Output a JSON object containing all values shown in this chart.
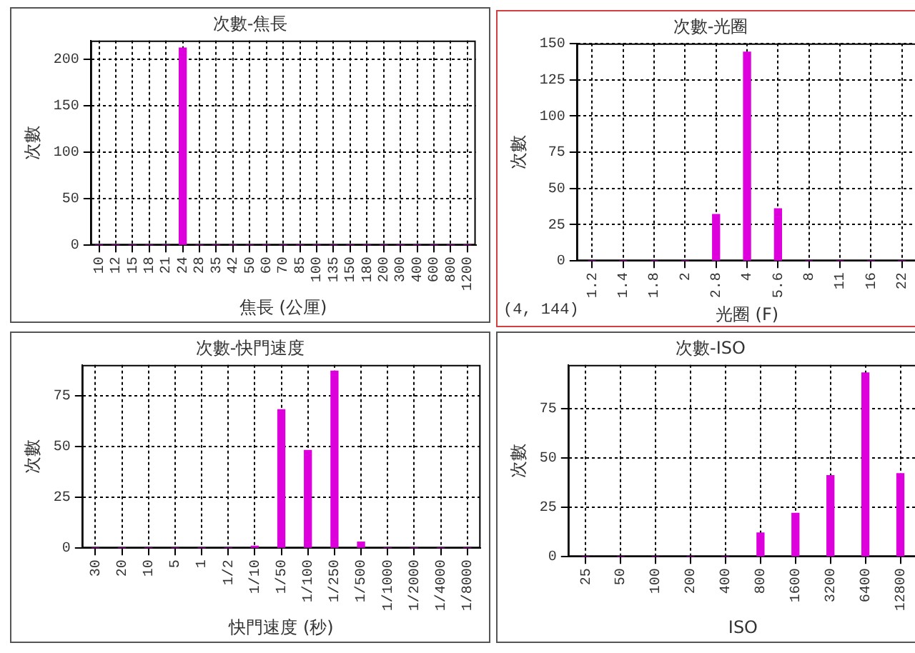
{
  "chart_data": [
    {
      "type": "bar",
      "title": "次數-焦長",
      "xlabel": "焦長 (公厘)",
      "ylabel": "次數",
      "categories": [
        "10",
        "12",
        "15",
        "18",
        "21",
        "24",
        "28",
        "35",
        "42",
        "50",
        "60",
        "70",
        "85",
        "100",
        "135",
        "150",
        "180",
        "200",
        "300",
        "400",
        "600",
        "800",
        "1200"
      ],
      "values": [
        0,
        0,
        0,
        0,
        0,
        212,
        0,
        0,
        0,
        0,
        0,
        0,
        0,
        0,
        0,
        0,
        0,
        0,
        0,
        0,
        0,
        0,
        0
      ],
      "color": "#dd00dd",
      "ylim": [
        0,
        220
      ],
      "yticks": [
        0,
        50,
        100,
        150,
        200
      ],
      "grid": true
    },
    {
      "type": "bar",
      "title": "次數-光圈",
      "xlabel": "光圈 (F)",
      "ylabel": "次數",
      "categories": [
        "1.2",
        "1.4",
        "1.8",
        "2",
        "2.8",
        "4",
        "5.6",
        "8",
        "11",
        "16",
        "22"
      ],
      "values": [
        0,
        0,
        0,
        0,
        32,
        144,
        36,
        0,
        0,
        0,
        0
      ],
      "color": "#dd00dd",
      "ylim": [
        0,
        150
      ],
      "yticks": [
        0,
        25,
        50,
        75,
        100,
        125,
        150
      ],
      "grid": true,
      "annotations": [
        "(4, 144)"
      ]
    },
    {
      "type": "bar",
      "title": "次數-快門速度",
      "xlabel": "快門速度 (秒)",
      "ylabel": "次數",
      "categories": [
        "30",
        "20",
        "10",
        "5",
        "1",
        "1/2",
        "1/10",
        "1/50",
        "1/100",
        "1/250",
        "1/500",
        "1/1000",
        "1/2000",
        "1/4000",
        "1/8000"
      ],
      "values": [
        0,
        0,
        0,
        0,
        0,
        0,
        1,
        68,
        48,
        87,
        3,
        0,
        0,
        0,
        0
      ],
      "color": "#dd00dd",
      "ylim": [
        0,
        90
      ],
      "yticks": [
        0,
        25,
        50,
        75
      ],
      "grid": true
    },
    {
      "type": "bar",
      "title": "次數-ISO",
      "xlabel": "ISO",
      "ylabel": "次數",
      "categories": [
        "25",
        "50",
        "100",
        "200",
        "400",
        "800",
        "1600",
        "3200",
        "6400",
        "12800"
      ],
      "values": [
        0,
        0,
        0,
        0,
        0,
        12,
        22,
        41,
        93,
        42
      ],
      "color": "#dd00dd",
      "ylim": [
        0,
        97
      ],
      "yticks": [
        0,
        25,
        50,
        75
      ],
      "grid": true
    }
  ]
}
